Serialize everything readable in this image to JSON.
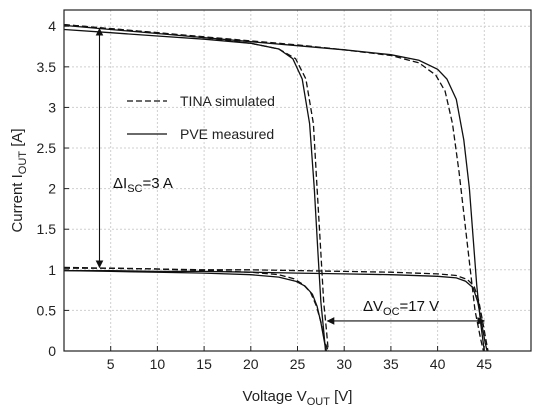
{
  "chart_data": {
    "type": "line",
    "xlabel_main": "Voltage V",
    "xlabel_sub": "OUT",
    "xlabel_unit": " [V]",
    "ylabel_main": "Current I",
    "ylabel_sub": "OUT",
    "ylabel_unit": " [A]",
    "xlim": [
      0,
      50
    ],
    "ylim": [
      0,
      4.2
    ],
    "xticks": [
      5,
      10,
      15,
      20,
      25,
      30,
      35,
      40,
      45
    ],
    "yticks": [
      0,
      0.5,
      1,
      1.5,
      2,
      2.5,
      3,
      3.5,
      4
    ],
    "grid": true,
    "legend": {
      "placement": "upper-left-inside",
      "entries": [
        {
          "label": "TINA simulated",
          "style": "dashed"
        },
        {
          "label": "PVE measured",
          "style": "solid"
        }
      ]
    },
    "annotations": {
      "delta_isc": {
        "main": "ΔI",
        "sub": "SC",
        "rest": "=3 A",
        "x": 3.8,
        "y_from": 1.03,
        "y_to": 3.97
      },
      "delta_voc": {
        "main": "ΔV",
        "sub": "OC",
        "rest": "=17 V",
        "y": 0.37,
        "x_from": 28.2,
        "x_to": 45.0
      }
    },
    "series": [
      {
        "label": "PVE measured",
        "style": "solid",
        "points": [
          [
            0,
            3.96
          ],
          [
            5,
            3.92
          ],
          [
            10,
            3.88
          ],
          [
            15,
            3.84
          ],
          [
            20,
            3.79
          ],
          [
            23,
            3.72
          ],
          [
            24.5,
            3.6
          ],
          [
            25.5,
            3.35
          ],
          [
            26.3,
            2.8
          ],
          [
            26.8,
            2.0
          ],
          [
            27.2,
            1.2
          ],
          [
            27.5,
            0.6
          ],
          [
            27.8,
            0.25
          ],
          [
            28.0,
            0
          ]
        ]
      },
      {
        "label": "TINA simulated",
        "style": "dashed",
        "points": [
          [
            0,
            4.02
          ],
          [
            5,
            3.97
          ],
          [
            10,
            3.92
          ],
          [
            15,
            3.86
          ],
          [
            20,
            3.79
          ],
          [
            23,
            3.72
          ],
          [
            24.8,
            3.6
          ],
          [
            25.9,
            3.35
          ],
          [
            26.7,
            2.8
          ],
          [
            27.1,
            2.0
          ],
          [
            27.5,
            1.2
          ],
          [
            27.8,
            0.6
          ],
          [
            28.1,
            0.25
          ],
          [
            28.3,
            0
          ]
        ]
      },
      {
        "label": "PVE measured",
        "style": "solid",
        "points": [
          [
            0,
            4.01
          ],
          [
            5,
            3.96
          ],
          [
            10,
            3.91
          ],
          [
            15,
            3.86
          ],
          [
            20,
            3.81
          ],
          [
            25,
            3.76
          ],
          [
            30,
            3.71
          ],
          [
            35,
            3.65
          ],
          [
            38,
            3.58
          ],
          [
            40,
            3.47
          ],
          [
            41,
            3.35
          ],
          [
            42,
            3.1
          ],
          [
            42.8,
            2.6
          ],
          [
            43.4,
            2.0
          ],
          [
            43.8,
            1.4
          ],
          [
            44.2,
            0.8
          ],
          [
            44.6,
            0.35
          ],
          [
            45.0,
            0
          ]
        ]
      },
      {
        "label": "TINA simulated",
        "style": "dashed",
        "points": [
          [
            0,
            4.02
          ],
          [
            5,
            3.97
          ],
          [
            10,
            3.92
          ],
          [
            15,
            3.87
          ],
          [
            20,
            3.82
          ],
          [
            25,
            3.77
          ],
          [
            30,
            3.71
          ],
          [
            35,
            3.64
          ],
          [
            38,
            3.55
          ],
          [
            39.8,
            3.4
          ],
          [
            40.8,
            3.2
          ],
          [
            41.6,
            2.8
          ],
          [
            42.3,
            2.2
          ],
          [
            42.9,
            1.6
          ],
          [
            43.5,
            1.0
          ],
          [
            44.0,
            0.5
          ],
          [
            44.6,
            0.15
          ],
          [
            44.9,
            0
          ]
        ]
      },
      {
        "label": "PVE measured",
        "style": "solid",
        "points": [
          [
            0,
            0.99
          ],
          [
            5,
            0.98
          ],
          [
            10,
            0.97
          ],
          [
            15,
            0.96
          ],
          [
            20,
            0.94
          ],
          [
            23,
            0.91
          ],
          [
            24.8,
            0.86
          ],
          [
            25.8,
            0.8
          ],
          [
            26.6,
            0.7
          ],
          [
            27.1,
            0.55
          ],
          [
            27.5,
            0.35
          ],
          [
            27.9,
            0.1
          ],
          [
            28.1,
            0
          ]
        ]
      },
      {
        "label": "TINA simulated",
        "style": "dashed",
        "points": [
          [
            0,
            1.03
          ],
          [
            5,
            1.02
          ],
          [
            10,
            1.01
          ],
          [
            15,
            0.99
          ],
          [
            20,
            0.97
          ],
          [
            23,
            0.94
          ],
          [
            24.6,
            0.89
          ],
          [
            25.6,
            0.82
          ],
          [
            26.4,
            0.72
          ],
          [
            27.0,
            0.56
          ],
          [
            27.5,
            0.36
          ],
          [
            27.9,
            0.12
          ],
          [
            28.3,
            0
          ]
        ]
      },
      {
        "label": "PVE measured",
        "style": "solid",
        "points": [
          [
            0,
            0.99
          ],
          [
            5,
            0.99
          ],
          [
            10,
            0.98
          ],
          [
            15,
            0.98
          ],
          [
            20,
            0.97
          ],
          [
            25,
            0.96
          ],
          [
            30,
            0.95
          ],
          [
            35,
            0.94
          ],
          [
            40,
            0.92
          ],
          [
            42,
            0.9
          ],
          [
            43,
            0.86
          ],
          [
            43.8,
            0.78
          ],
          [
            44.3,
            0.6
          ],
          [
            44.7,
            0.35
          ],
          [
            45.1,
            0.1
          ],
          [
            45.3,
            0
          ]
        ]
      },
      {
        "label": "TINA simulated",
        "style": "dashed",
        "points": [
          [
            0,
            1.02
          ],
          [
            5,
            1.02
          ],
          [
            10,
            1.01
          ],
          [
            15,
            1.0
          ],
          [
            20,
            1.0
          ],
          [
            25,
            0.99
          ],
          [
            30,
            0.98
          ],
          [
            35,
            0.97
          ],
          [
            40,
            0.95
          ],
          [
            42,
            0.93
          ],
          [
            43.2,
            0.88
          ],
          [
            43.9,
            0.8
          ],
          [
            44.4,
            0.62
          ],
          [
            44.8,
            0.38
          ],
          [
            45.2,
            0.12
          ],
          [
            45.4,
            0
          ]
        ]
      }
    ]
  }
}
